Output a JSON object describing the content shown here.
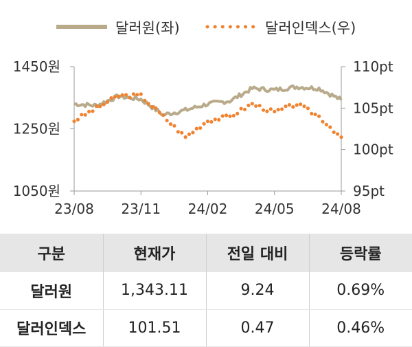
{
  "chart_data": {
    "type": "line",
    "legend": [
      {
        "name": "달러원(좌)",
        "color": "#b8aa8a",
        "style": "solid"
      },
      {
        "name": "달러인덱스(우)",
        "color": "#ef8330",
        "style": "dotted"
      }
    ],
    "legend_position": "top",
    "x_ticks": [
      "23/08",
      "23/11",
      "24/02",
      "24/05",
      "24/08"
    ],
    "y_left": {
      "ticks": [
        "1450원",
        "1250원",
        "1050원"
      ],
      "range": [
        1050,
        1450
      ],
      "unit": "원"
    },
    "y_right": {
      "ticks": [
        "110pt",
        "105pt",
        "100pt",
        "95pt"
      ],
      "range": [
        95,
        110
      ],
      "unit": "pt"
    },
    "grid": false,
    "series": [
      {
        "name": "달러원(좌)",
        "axis": "left",
        "color": "#b8aa8a",
        "x": [
          "23/08",
          "23/09",
          "23/10",
          "23/11",
          "23/12",
          "24/01",
          "24/02",
          "24/03",
          "24/04",
          "24/05",
          "24/06",
          "24/07",
          "24/08"
        ],
        "values": [
          1330,
          1325,
          1355,
          1345,
          1295,
          1310,
          1330,
          1340,
          1380,
          1375,
          1385,
          1380,
          1343
        ]
      },
      {
        "name": "달러인덱스(우)",
        "axis": "right",
        "color": "#ef8330",
        "x": [
          "23/08",
          "23/09",
          "23/10",
          "23/11",
          "23/12",
          "24/01",
          "24/02",
          "24/03",
          "24/04",
          "24/05",
          "24/06",
          "24/07",
          "24/08"
        ],
        "values": [
          103.5,
          105.0,
          106.5,
          106.5,
          104.0,
          101.5,
          103.5,
          104.0,
          105.5,
          104.5,
          105.5,
          104.0,
          101.5
        ]
      }
    ]
  },
  "table": {
    "headers": [
      "구분",
      "현재가",
      "전일 대비",
      "등락률"
    ],
    "rows": [
      [
        "달러원",
        "1,343.11",
        "9.24",
        "0.69%"
      ],
      [
        "달러인덱스",
        "101.51",
        "0.47",
        "0.46%"
      ]
    ]
  }
}
